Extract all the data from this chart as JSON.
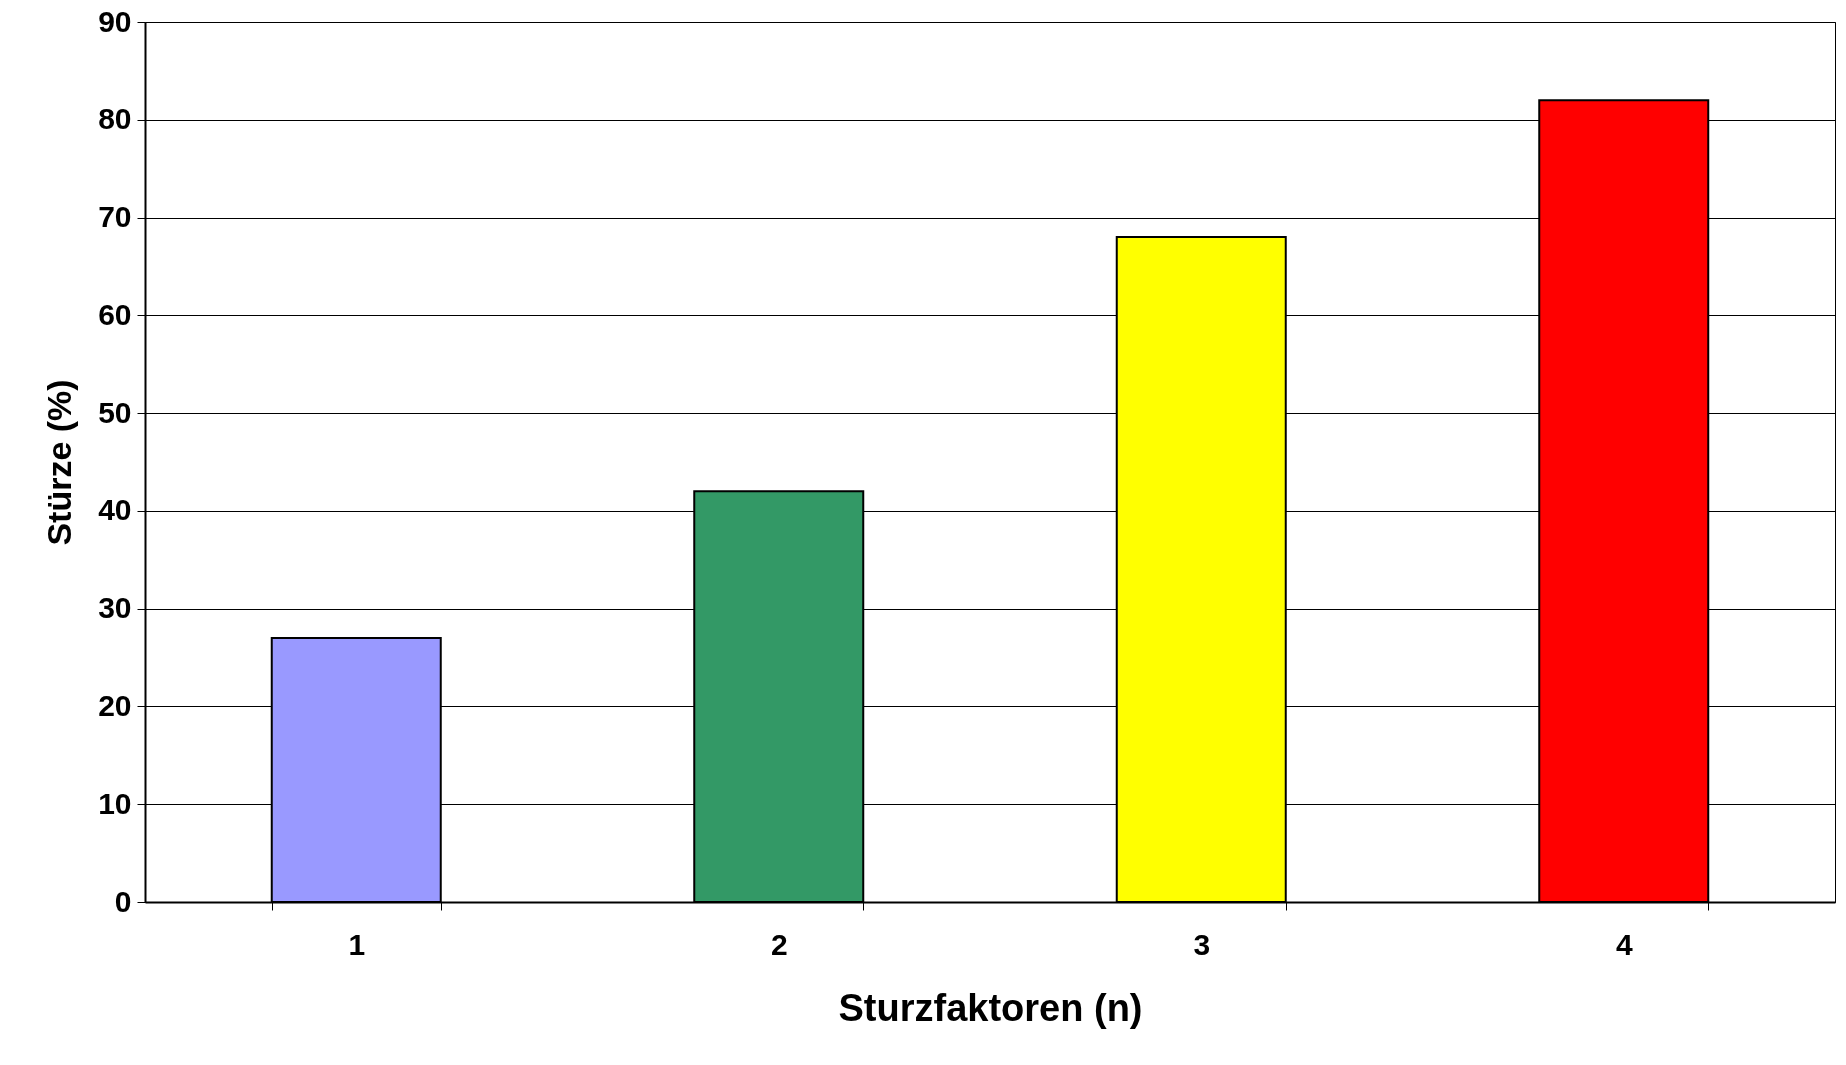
{
  "chart_data": {
    "type": "bar",
    "xlabel": "Sturzfaktoren (n)",
    "ylabel": "Stürze (%)",
    "categories": [
      "1",
      "2",
      "3",
      "4"
    ],
    "values": [
      27,
      42,
      68,
      82
    ],
    "colors": [
      "#9999ff",
      "#339966",
      "#ffff00",
      "#ff0000"
    ],
    "ylim": [
      0,
      90
    ],
    "yticks": [
      0,
      10,
      20,
      30,
      40,
      50,
      60,
      70,
      80,
      90
    ],
    "grid": "y"
  }
}
